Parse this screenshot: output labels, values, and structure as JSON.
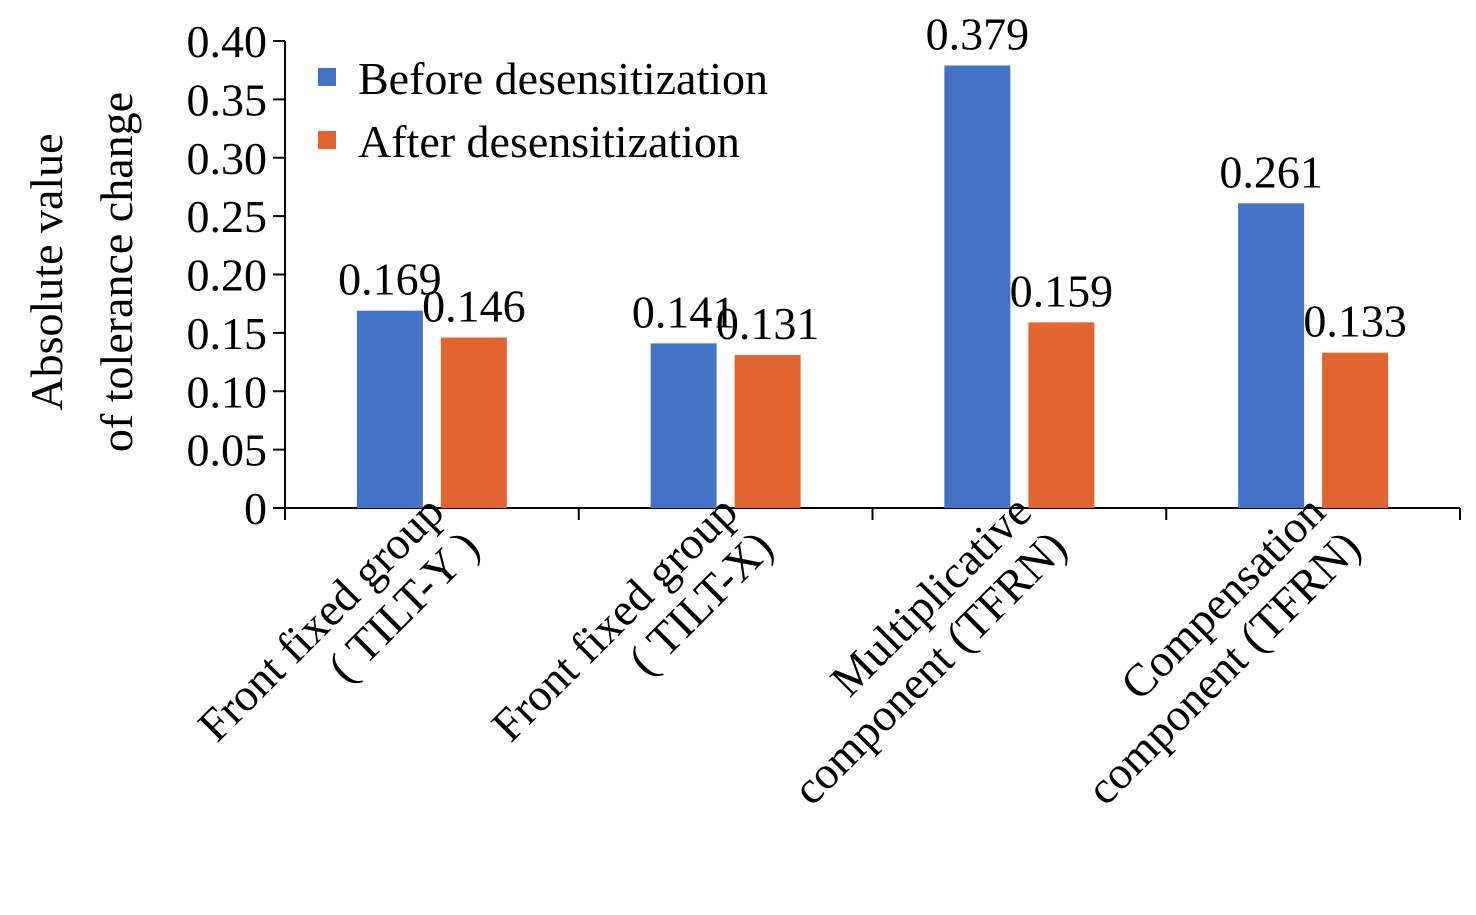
{
  "chart_data": {
    "type": "bar",
    "categories": [
      [
        "Front fixed group",
        "( TILT-Y )"
      ],
      [
        "Front fixed group",
        "( TILT-X)"
      ],
      [
        "Multiplicative",
        "component (TFRN)"
      ],
      [
        "Compensation",
        "component (TFRN)"
      ]
    ],
    "series": [
      {
        "name": "Before desensitization",
        "color": "#4472C4",
        "values": [
          0.169,
          0.141,
          0.379,
          0.261
        ],
        "labels": [
          "0.169",
          "0.141",
          "0.379",
          "0.261"
        ]
      },
      {
        "name": "After desensitization",
        "color": "#E06530",
        "values": [
          0.146,
          0.131,
          0.159,
          0.133
        ],
        "labels": [
          "0.146",
          "0.131",
          "0.159",
          "0.133"
        ]
      }
    ],
    "ylabel": [
      "Absolute value",
      "of tolerance change"
    ],
    "ylim": [
      0,
      0.4
    ],
    "yticks": [
      "0",
      "0.05",
      "0.10",
      "0.15",
      "0.20",
      "0.25",
      "0.30",
      "0.35",
      "0.40"
    ],
    "grid": false,
    "legend": "top-left"
  }
}
